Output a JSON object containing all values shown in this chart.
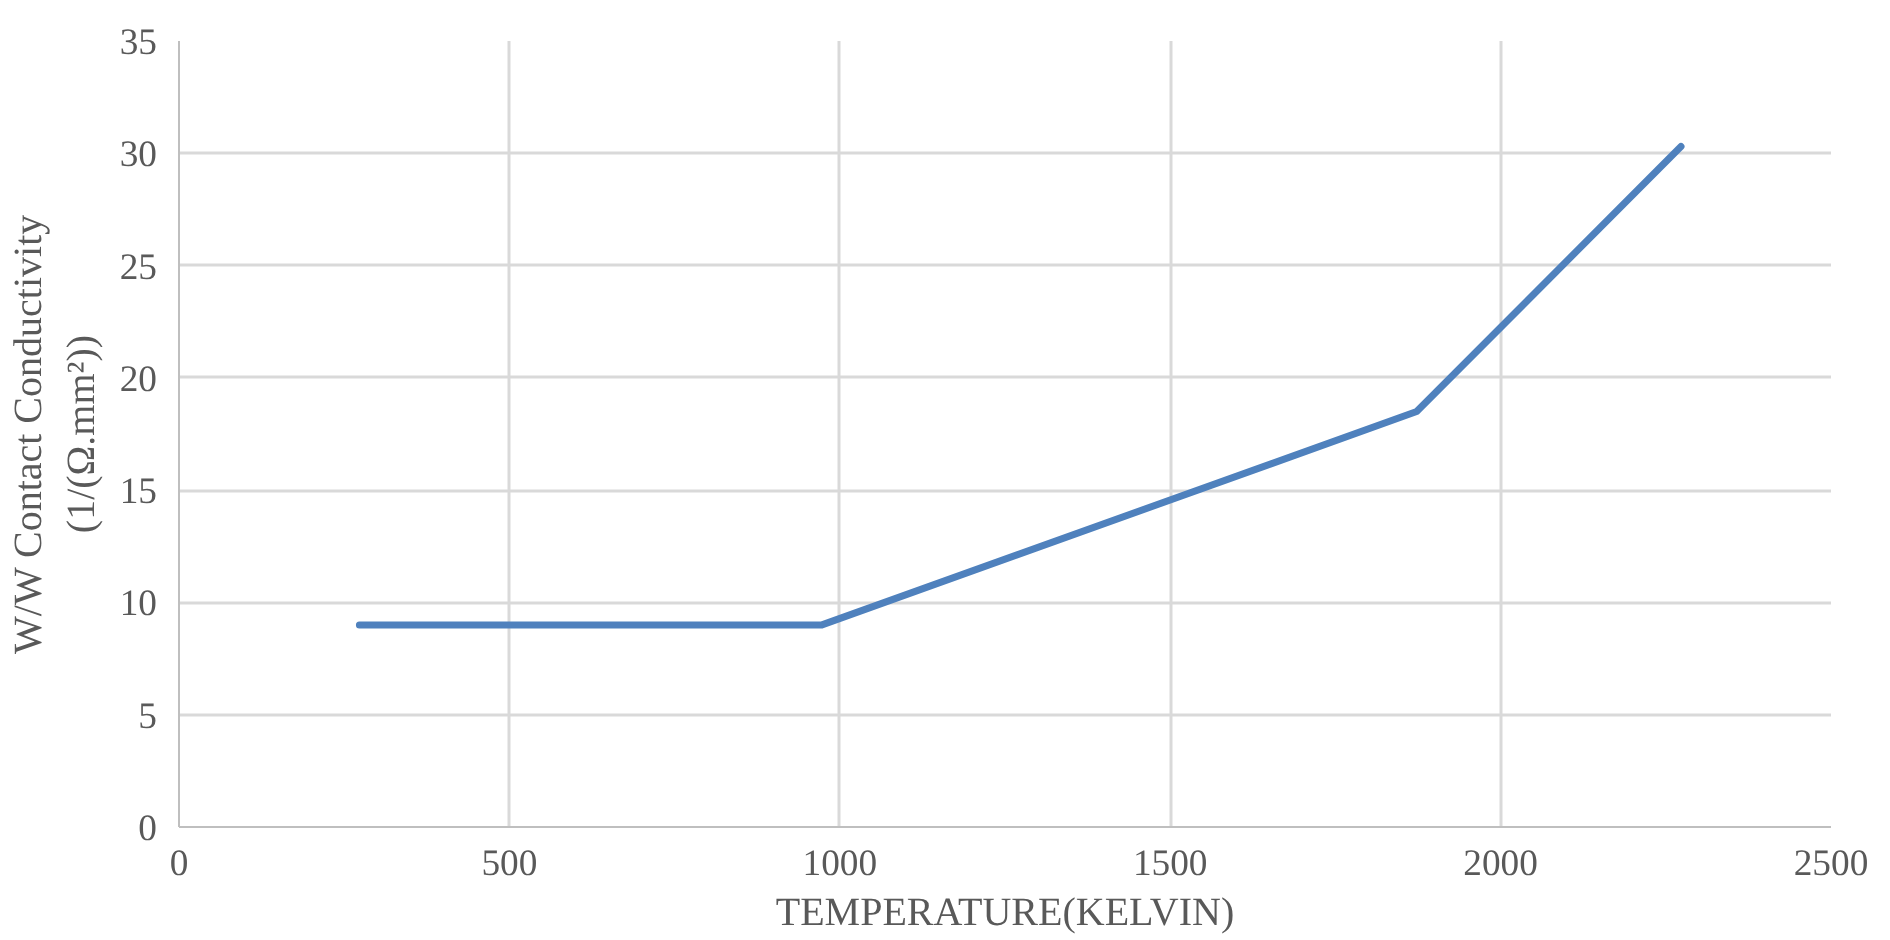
{
  "chart_data": {
    "type": "line",
    "xlabel": "TEMPERATURE(KELVIN)",
    "ylabel": "W/W Contact Conductivity\n(1/(Ω.mm²))",
    "x": [
      273,
      973,
      1873,
      2273
    ],
    "series": [
      {
        "color": "#4f81bd",
        "values": [
          9,
          9,
          18.5,
          30.3
        ]
      }
    ],
    "xlim": [
      0,
      2500
    ],
    "xticks": [
      0,
      500,
      1000,
      1500,
      2000,
      2500
    ],
    "ylim": [
      0,
      35
    ],
    "yticks": [
      0,
      5,
      10,
      15,
      20,
      25,
      30,
      35
    ],
    "grid": true,
    "marker": "none",
    "line_style": "solid"
  }
}
